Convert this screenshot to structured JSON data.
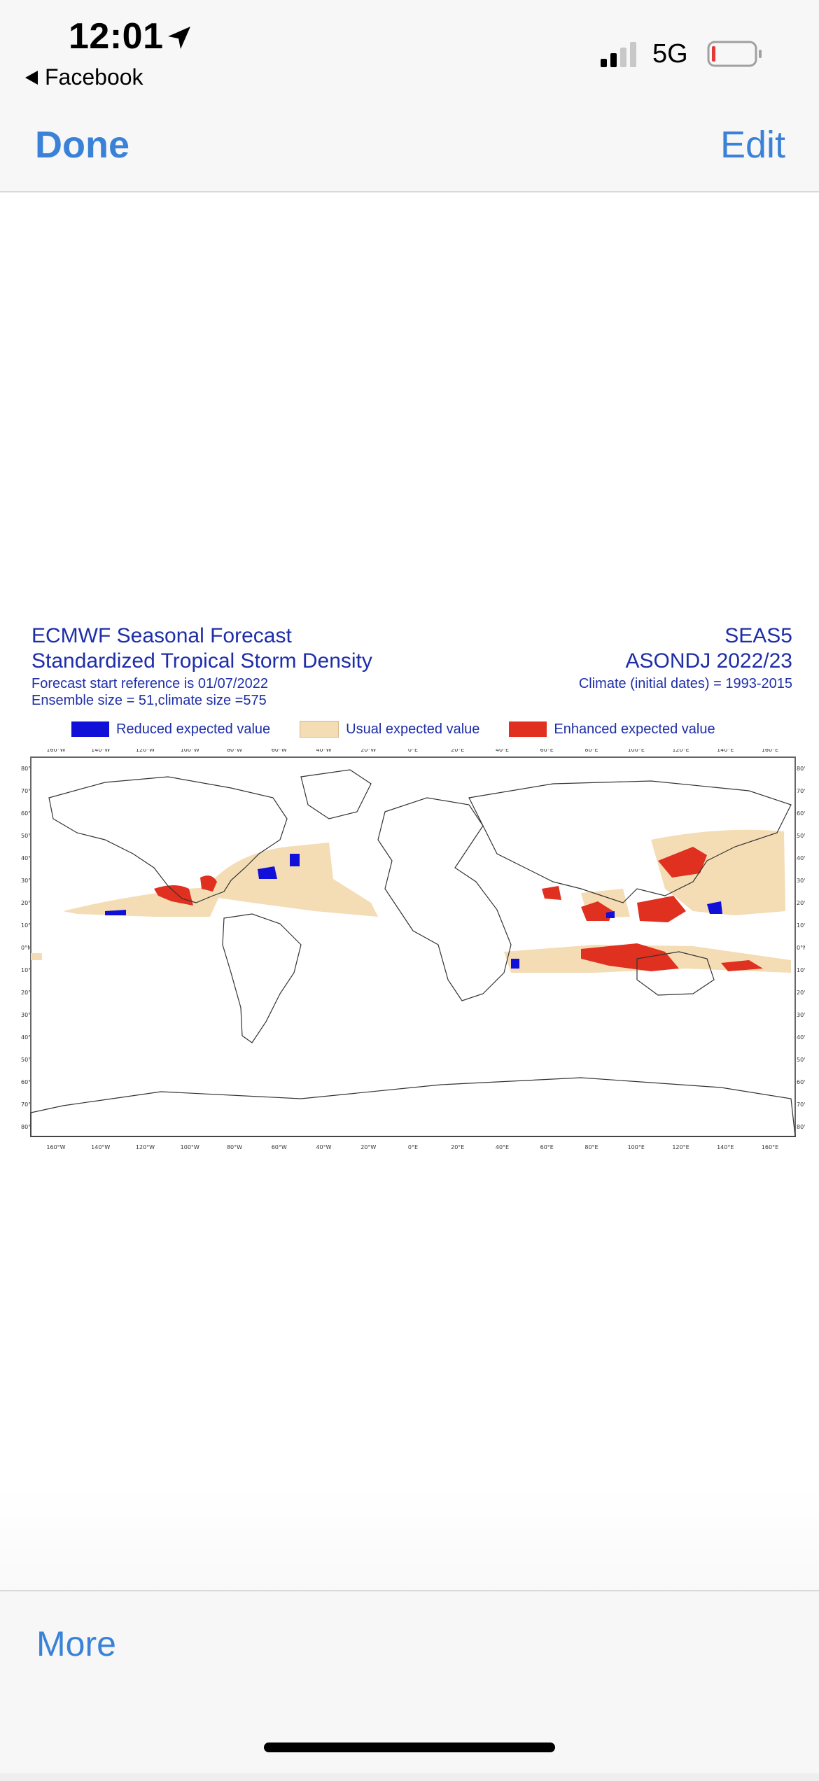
{
  "status_bar": {
    "time": "12:01",
    "location_icon": "location-arrow-icon",
    "back_app": "Facebook",
    "network": "5G",
    "battery_level": 0.08,
    "signal_bars": 2
  },
  "nav": {
    "done_label": "Done",
    "edit_label": "Edit"
  },
  "figure": {
    "title_line1": "ECMWF Seasonal Forecast",
    "title_line2": "Standardized Tropical Storm Density",
    "start_ref": "Forecast start reference is 01/07/2022",
    "ensemble": "Ensemble size = 51,climate size =575",
    "model": "SEAS5",
    "period": "ASONDJ 2022/23",
    "climate": "Climate (initial dates) = 1993-2015",
    "legend": [
      {
        "label": "Reduced expected value",
        "color": "#1010d8"
      },
      {
        "label": "Usual expected value",
        "color": "#f4dcb4"
      },
      {
        "label": "Enhanced expected value",
        "color": "#e03020"
      }
    ],
    "lon_ticks": [
      "160°W",
      "140°W",
      "120°W",
      "100°W",
      "80°W",
      "60°W",
      "40°W",
      "20°W",
      "0°E",
      "20°E",
      "40°E",
      "60°E",
      "80°E",
      "100°E",
      "120°E",
      "140°E",
      "160°E"
    ],
    "lat_ticks": [
      "80°N",
      "70°N",
      "60°N",
      "50°N",
      "40°N",
      "30°N",
      "20°N",
      "10°N",
      "0°N",
      "10°S",
      "20°S",
      "30°S",
      "40°S",
      "50°S",
      "60°S",
      "70°S",
      "80°S"
    ]
  },
  "toolbar": {
    "more_label": "More"
  }
}
